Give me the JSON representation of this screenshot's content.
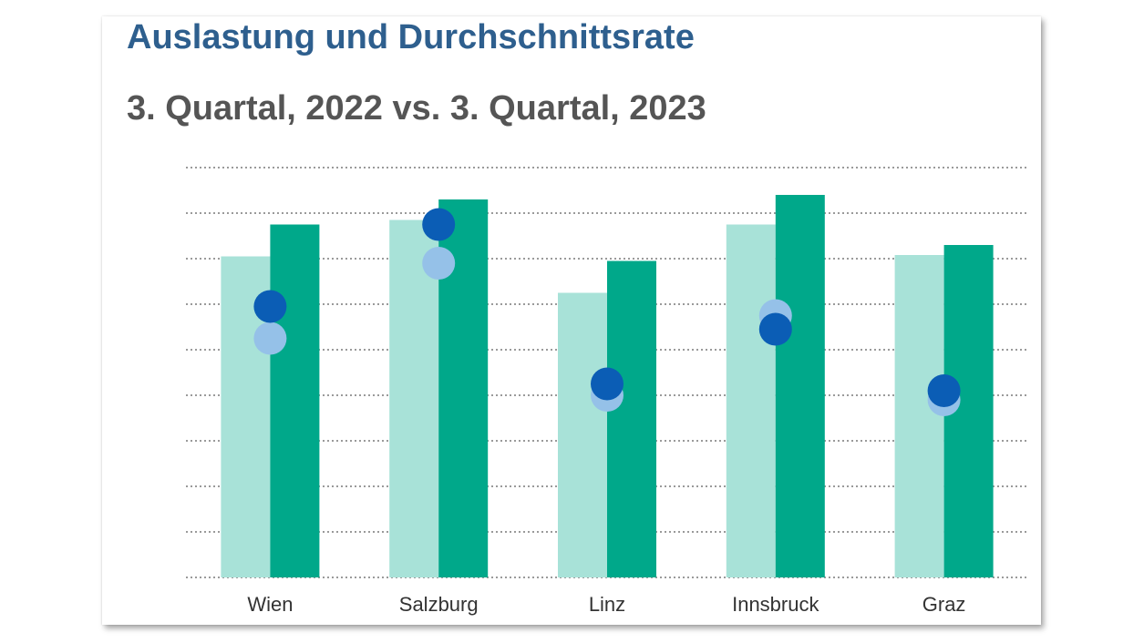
{
  "title": "Auslastung und Durchschnittsrate",
  "subtitle": "3. Quartal, 2022 vs. 3. Quartal, 2023",
  "colors": {
    "bar_2022": "#a8e2d8",
    "bar_2023": "#00a88a",
    "dot_2022": "#95c1e8",
    "dot_2023": "#0b5db5",
    "grid": "#9a9a9a",
    "title": "#2e5f8e",
    "subtitle": "#555555"
  },
  "chart_data": {
    "type": "bar",
    "categories": [
      "Wien",
      "Salzburg",
      "Linz",
      "Innsbruck",
      "Graz"
    ],
    "ylim": [
      0,
      9
    ],
    "grid": true,
    "series": [
      {
        "kind": "bar",
        "values": [
          7.05,
          7.85,
          6.25,
          7.75,
          7.08
        ]
      },
      {
        "kind": "bar",
        "values": [
          7.75,
          8.3,
          6.95,
          8.4,
          7.3
        ]
      },
      {
        "kind": "dot",
        "values": [
          5.25,
          6.9,
          4.0,
          5.75,
          3.9
        ]
      },
      {
        "kind": "dot",
        "values": [
          5.95,
          7.75,
          4.25,
          5.45,
          4.1
        ]
      }
    ]
  }
}
